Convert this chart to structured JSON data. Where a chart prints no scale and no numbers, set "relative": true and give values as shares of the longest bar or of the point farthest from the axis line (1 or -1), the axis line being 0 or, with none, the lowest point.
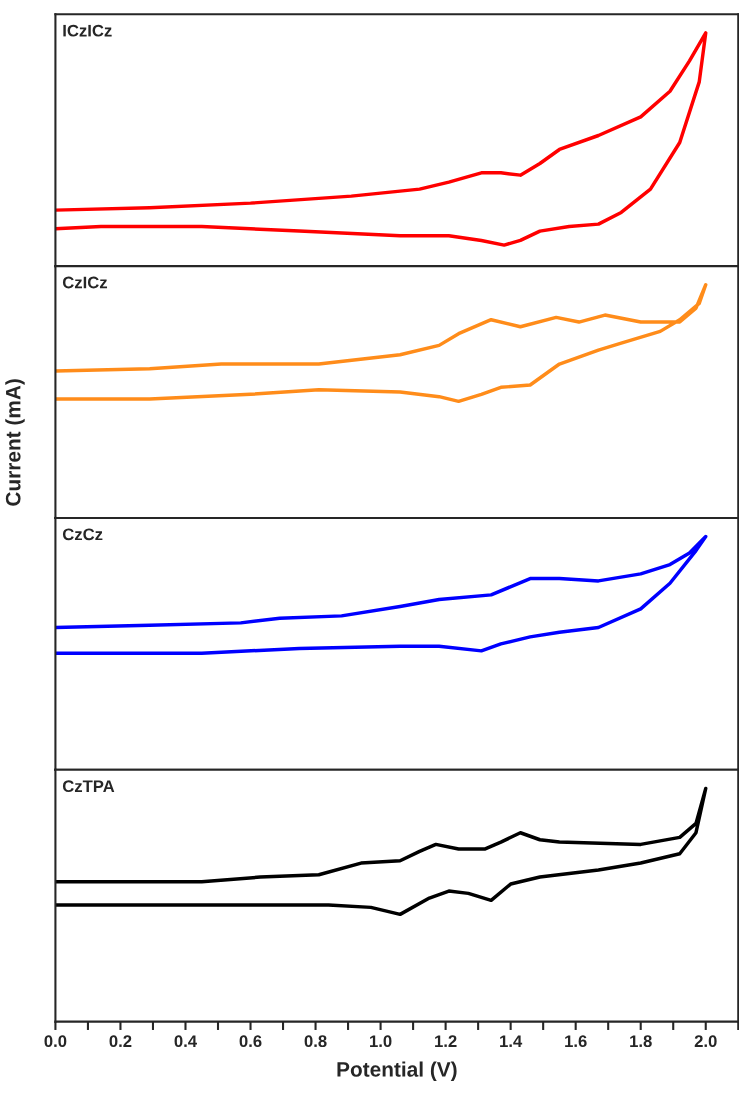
{
  "chart_data": [
    {
      "type": "line",
      "relative": true,
      "annotations": [
        "ICzICz"
      ],
      "tick_labels": false,
      "xlim": [
        0,
        2.1
      ],
      "x": [
        0,
        0.29,
        0.6,
        0.91,
        1.12,
        1.21,
        1.31,
        1.37,
        1.43,
        1.49,
        1.55,
        1.67,
        1.8,
        1.89,
        1.95,
        2.0,
        1.98,
        1.92,
        1.83,
        1.74,
        1.67,
        1.58,
        1.49,
        1.43,
        1.38,
        1.31,
        1.21,
        1.06,
        0.75,
        0.45,
        0.14,
        0
      ],
      "series": [
        {
          "color": "#ff0000",
          "values": [
            0.24,
            0.25,
            0.27,
            0.3,
            0.33,
            0.36,
            0.4,
            0.4,
            0.39,
            0.44,
            0.5,
            0.56,
            0.64,
            0.75,
            0.88,
            1.0,
            0.79,
            0.53,
            0.33,
            0.23,
            0.18,
            0.17,
            0.15,
            0.11,
            0.09,
            0.11,
            0.13,
            0.13,
            0.15,
            0.17,
            0.17,
            0.16
          ]
        }
      ]
    },
    {
      "type": "line",
      "relative": true,
      "annotations": [
        "CzICz"
      ],
      "ylabel": "Current (mA)",
      "tick_labels": false,
      "xlim": [
        0,
        2.1
      ],
      "x": [
        0,
        0.29,
        0.51,
        0.81,
        1.06,
        1.18,
        1.24,
        1.34,
        1.43,
        1.54,
        1.61,
        1.69,
        1.8,
        1.92,
        1.97,
        2.0,
        1.98,
        1.92,
        1.86,
        1.74,
        1.67,
        1.55,
        1.46,
        1.37,
        1.31,
        1.24,
        1.18,
        1.06,
        0.81,
        0.6,
        0.29,
        0
      ],
      "series": [
        {
          "color": "#ff8c1a",
          "values": [
            0.63,
            0.64,
            0.66,
            0.66,
            0.7,
            0.74,
            0.79,
            0.85,
            0.82,
            0.86,
            0.84,
            0.87,
            0.84,
            0.84,
            0.9,
            1.0,
            0.92,
            0.85,
            0.8,
            0.75,
            0.72,
            0.66,
            0.57,
            0.56,
            0.53,
            0.5,
            0.52,
            0.54,
            0.55,
            0.53,
            0.51,
            0.51
          ]
        }
      ]
    },
    {
      "type": "line",
      "relative": true,
      "annotations": [
        "CzCz"
      ],
      "tick_labels": false,
      "xlim": [
        0,
        2.1
      ],
      "x": [
        0,
        0.29,
        0.57,
        0.69,
        0.88,
        1.06,
        1.18,
        1.34,
        1.46,
        1.55,
        1.67,
        1.8,
        1.89,
        1.95,
        2.0,
        1.97,
        1.89,
        1.8,
        1.67,
        1.55,
        1.46,
        1.37,
        1.31,
        1.18,
        1.06,
        0.75,
        0.45,
        0
      ],
      "series": [
        {
          "color": "#0000ff",
          "values": [
            0.61,
            0.62,
            0.63,
            0.65,
            0.66,
            0.7,
            0.73,
            0.75,
            0.82,
            0.82,
            0.81,
            0.84,
            0.88,
            0.93,
            1.0,
            0.94,
            0.8,
            0.69,
            0.61,
            0.59,
            0.57,
            0.54,
            0.51,
            0.53,
            0.53,
            0.52,
            0.5,
            0.5
          ]
        }
      ]
    },
    {
      "type": "line",
      "relative": true,
      "annotations": [
        "CzTPA"
      ],
      "xlabel": "Potential (V)",
      "tick_labels": "x",
      "xlim": [
        0,
        2.1
      ],
      "xticks": [
        {
          "value": 0,
          "label": "0.0"
        },
        {
          "value": 0.1,
          "label": null
        },
        {
          "value": 0.2,
          "label": "0.2"
        },
        {
          "value": 0.3,
          "label": null
        },
        {
          "value": 0.4,
          "label": "0.4"
        },
        {
          "value": 0.5,
          "label": null
        },
        {
          "value": 0.6,
          "label": "0.6"
        },
        {
          "value": 0.7,
          "label": null
        },
        {
          "value": 0.8,
          "label": "0.8"
        },
        {
          "value": 0.9,
          "label": null
        },
        {
          "value": 1.0,
          "label": "1.0"
        },
        {
          "value": 1.1,
          "label": null
        },
        {
          "value": 1.2,
          "label": "1.2"
        },
        {
          "value": 1.3,
          "label": null
        },
        {
          "value": 1.4,
          "label": "1.4"
        },
        {
          "value": 1.5,
          "label": null
        },
        {
          "value": 1.6,
          "label": "1.6"
        },
        {
          "value": 1.7,
          "label": null
        },
        {
          "value": 1.8,
          "label": "1.8"
        },
        {
          "value": 1.9,
          "label": null
        },
        {
          "value": 2.0,
          "label": "2.0"
        },
        {
          "value": 2.1,
          "label": null
        }
      ],
      "x": [
        0,
        0.45,
        0.63,
        0.81,
        0.94,
        1.06,
        1.12,
        1.17,
        1.24,
        1.32,
        1.37,
        1.43,
        1.49,
        1.55,
        1.8,
        1.92,
        1.97,
        2.0,
        1.97,
        1.92,
        1.8,
        1.67,
        1.49,
        1.4,
        1.34,
        1.27,
        1.21,
        1.15,
        1.06,
        0.97,
        0.84,
        0.75,
        0.45,
        0
      ],
      "series": [
        {
          "color": "#000000",
          "values": [
            0.6,
            0.6,
            0.62,
            0.63,
            0.68,
            0.69,
            0.73,
            0.76,
            0.74,
            0.74,
            0.77,
            0.81,
            0.78,
            0.77,
            0.76,
            0.79,
            0.85,
            1.0,
            0.81,
            0.72,
            0.68,
            0.65,
            0.62,
            0.59,
            0.52,
            0.55,
            0.56,
            0.53,
            0.46,
            0.49,
            0.5,
            0.5,
            0.5,
            0.5
          ]
        }
      ]
    }
  ]
}
